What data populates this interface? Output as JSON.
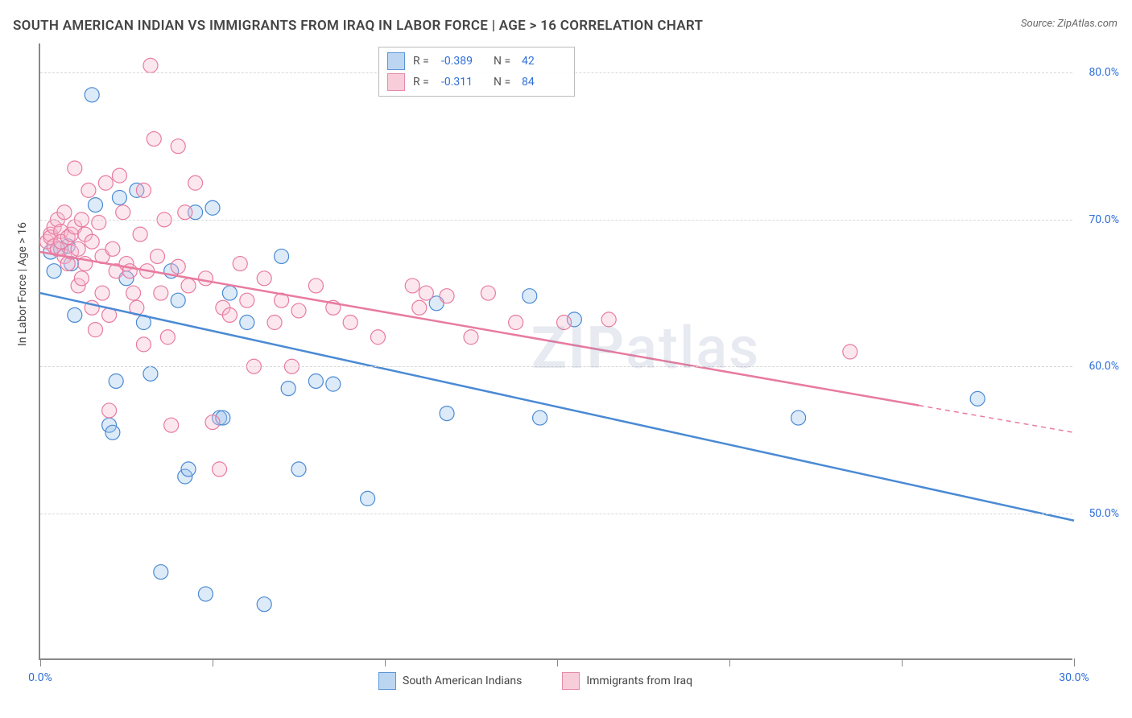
{
  "title": "SOUTH AMERICAN INDIAN VS IMMIGRANTS FROM IRAQ IN LABOR FORCE | AGE > 16 CORRELATION CHART",
  "source_label": "Source: ZipAtlas.com",
  "y_axis_label": "In Labor Force | Age > 16",
  "watermark_bold": "ZIP",
  "watermark_rest": "atlas",
  "chart": {
    "type": "scatter",
    "xlim": [
      0,
      30
    ],
    "ylim": [
      40,
      82
    ],
    "x_ticks": [
      0,
      5,
      10,
      15,
      20,
      25,
      30
    ],
    "x_tick_labels": {
      "0": "0.0%",
      "30": "30.0%"
    },
    "y_gridlines": [
      50,
      60,
      70,
      80
    ],
    "y_tick_labels": {
      "50": "50.0%",
      "60": "60.0%",
      "70": "70.0%",
      "80": "80.0%"
    },
    "background_color": "#ffffff",
    "grid_color": "#d8d8d8",
    "axis_color": "#888888",
    "marker_radius": 9,
    "marker_stroke_width": 1.2,
    "marker_fill_opacity": 0.35,
    "series": [
      {
        "name": "South American Indians",
        "color_stroke": "#4a8ad4",
        "color_fill": "#9fc3ea",
        "swatch_fill": "#bcd6f2",
        "swatch_stroke": "#5a96d8",
        "R": "-0.389",
        "N": "42",
        "trend": {
          "x1": 0,
          "y1": 65.0,
          "x2": 30,
          "y2": 49.5,
          "dash_from_x": null
        },
        "points": [
          [
            0.3,
            67.8
          ],
          [
            0.4,
            66.5
          ],
          [
            0.6,
            68.0
          ],
          [
            0.8,
            68.2
          ],
          [
            0.9,
            67.0
          ],
          [
            1.5,
            78.5
          ],
          [
            1.6,
            71.0
          ],
          [
            2.0,
            56.0
          ],
          [
            2.1,
            55.5
          ],
          [
            2.2,
            59.0
          ],
          [
            2.3,
            71.5
          ],
          [
            2.5,
            66.0
          ],
          [
            2.8,
            72.0
          ],
          [
            3.0,
            63.0
          ],
          [
            3.2,
            59.5
          ],
          [
            3.5,
            46.0
          ],
          [
            3.8,
            66.5
          ],
          [
            4.0,
            64.5
          ],
          [
            4.2,
            52.5
          ],
          [
            4.3,
            53.0
          ],
          [
            4.5,
            70.5
          ],
          [
            4.8,
            44.5
          ],
          [
            5.0,
            70.8
          ],
          [
            5.2,
            56.5
          ],
          [
            5.3,
            56.5
          ],
          [
            5.5,
            65.0
          ],
          [
            6.0,
            63.0
          ],
          [
            6.5,
            43.8
          ],
          [
            7.0,
            67.5
          ],
          [
            7.2,
            58.5
          ],
          [
            7.5,
            53.0
          ],
          [
            8.0,
            59.0
          ],
          [
            8.5,
            58.8
          ],
          [
            9.5,
            51.0
          ],
          [
            11.5,
            64.3
          ],
          [
            11.8,
            56.8
          ],
          [
            14.2,
            64.8
          ],
          [
            14.5,
            56.5
          ],
          [
            15.5,
            63.2
          ],
          [
            22.0,
            56.5
          ],
          [
            27.2,
            57.8
          ],
          [
            1.0,
            63.5
          ]
        ]
      },
      {
        "name": "Immigrants from Iraq",
        "color_stroke": "#e87ba0",
        "color_fill": "#f5b9ce",
        "swatch_fill": "#f8cdda",
        "swatch_stroke": "#e78aa9",
        "R": "-0.311",
        "N": "84",
        "trend": {
          "x1": 0,
          "y1": 67.8,
          "x2": 30,
          "y2": 55.5,
          "dash_from_x": 25.5
        },
        "points": [
          [
            0.2,
            68.5
          ],
          [
            0.3,
            69.0
          ],
          [
            0.3,
            68.8
          ],
          [
            0.4,
            69.5
          ],
          [
            0.4,
            68.2
          ],
          [
            0.5,
            70.0
          ],
          [
            0.5,
            68.0
          ],
          [
            0.6,
            69.2
          ],
          [
            0.6,
            68.5
          ],
          [
            0.7,
            67.5
          ],
          [
            0.7,
            70.5
          ],
          [
            0.8,
            68.8
          ],
          [
            0.8,
            67.0
          ],
          [
            0.9,
            69.0
          ],
          [
            0.9,
            67.8
          ],
          [
            1.0,
            73.5
          ],
          [
            1.0,
            69.5
          ],
          [
            1.1,
            68.0
          ],
          [
            1.1,
            65.5
          ],
          [
            1.2,
            70.0
          ],
          [
            1.2,
            66.0
          ],
          [
            1.3,
            69.0
          ],
          [
            1.3,
            67.0
          ],
          [
            1.4,
            72.0
          ],
          [
            1.5,
            68.5
          ],
          [
            1.5,
            64.0
          ],
          [
            1.6,
            62.5
          ],
          [
            1.7,
            69.8
          ],
          [
            1.8,
            67.5
          ],
          [
            1.8,
            65.0
          ],
          [
            1.9,
            72.5
          ],
          [
            2.0,
            63.5
          ],
          [
            2.0,
            57.0
          ],
          [
            2.1,
            68.0
          ],
          [
            2.2,
            66.5
          ],
          [
            2.3,
            73.0
          ],
          [
            2.4,
            70.5
          ],
          [
            2.5,
            67.0
          ],
          [
            2.6,
            66.5
          ],
          [
            2.7,
            65.0
          ],
          [
            2.8,
            64.0
          ],
          [
            2.9,
            69.0
          ],
          [
            3.0,
            72.0
          ],
          [
            3.0,
            61.5
          ],
          [
            3.1,
            66.5
          ],
          [
            3.2,
            80.5
          ],
          [
            3.3,
            75.5
          ],
          [
            3.4,
            67.5
          ],
          [
            3.5,
            65.0
          ],
          [
            3.6,
            70.0
          ],
          [
            3.7,
            62.0
          ],
          [
            3.8,
            56.0
          ],
          [
            4.0,
            75.0
          ],
          [
            4.0,
            66.8
          ],
          [
            4.2,
            70.5
          ],
          [
            4.3,
            65.5
          ],
          [
            4.5,
            72.5
          ],
          [
            4.8,
            66.0
          ],
          [
            5.0,
            56.2
          ],
          [
            5.2,
            53.0
          ],
          [
            5.3,
            64.0
          ],
          [
            5.5,
            63.5
          ],
          [
            5.8,
            67.0
          ],
          [
            6.0,
            64.5
          ],
          [
            6.2,
            60.0
          ],
          [
            6.5,
            66.0
          ],
          [
            6.8,
            63.0
          ],
          [
            7.0,
            64.5
          ],
          [
            7.3,
            60.0
          ],
          [
            7.5,
            63.8
          ],
          [
            8.0,
            65.5
          ],
          [
            8.5,
            64.0
          ],
          [
            9.0,
            63.0
          ],
          [
            9.8,
            62.0
          ],
          [
            10.8,
            65.5
          ],
          [
            11.0,
            64.0
          ],
          [
            11.2,
            65.0
          ],
          [
            11.8,
            64.8
          ],
          [
            12.5,
            62.0
          ],
          [
            13.0,
            65.0
          ],
          [
            13.8,
            63.0
          ],
          [
            15.2,
            63.0
          ],
          [
            16.5,
            63.2
          ],
          [
            23.5,
            61.0
          ]
        ]
      }
    ]
  },
  "colors": {
    "text_primary": "#444444",
    "text_secondary": "#666666",
    "axis_value": "#2e6fd9"
  }
}
